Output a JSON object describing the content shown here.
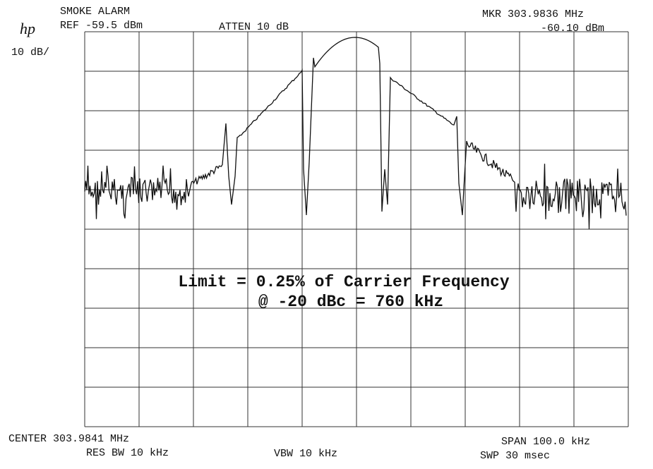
{
  "header": {
    "title": "SMOKE ALARM",
    "ref": "REF -59.5 dBm",
    "atten": "ATTEN 10 dB",
    "marker_freq": "MKR 303.9836 MHz",
    "marker_level": "-60.10 dBm",
    "logo": "hp",
    "scale": "10 dB/"
  },
  "annotation": {
    "line1": "Limit = 0.25% of Carrier Frequency",
    "line2": "@ -20 dBc = 760 kHz"
  },
  "footer": {
    "center": "CENTER 303.9841 MHz",
    "res_bw": "RES BW 10 kHz",
    "vbw": "VBW 10 kHz",
    "span": "SPAN 100.0 kHz",
    "sweep": "SWP 30 msec"
  }
}
